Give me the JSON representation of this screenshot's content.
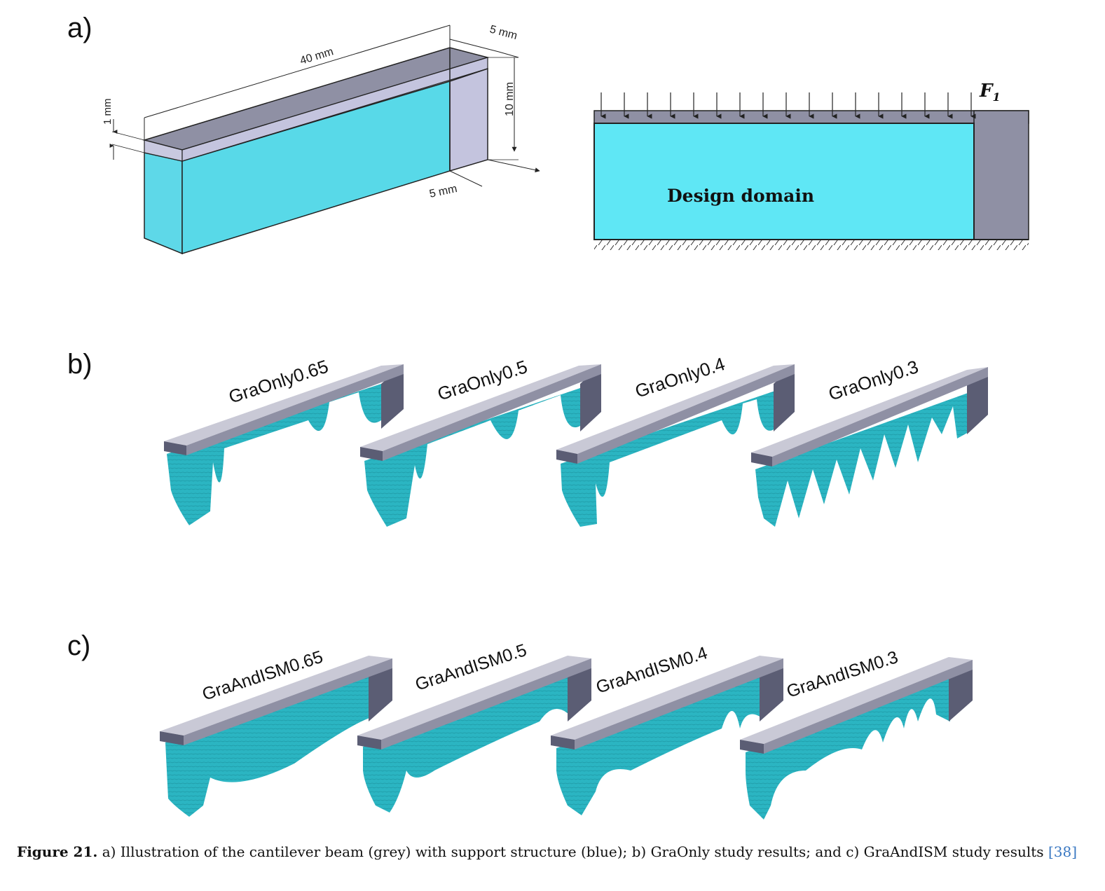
{
  "panels": {
    "a": {
      "label": "a)"
    },
    "b": {
      "label": "b)"
    },
    "c": {
      "label": "c)"
    }
  },
  "panel_a": {
    "dim_length": "40 mm",
    "dim_width_top": "5 mm",
    "dim_height": "10 mm",
    "dim_width_bottom": "5 mm",
    "dim_thickness": "1 mm",
    "force_label": "F",
    "force_subscript": "1",
    "domain_label": "Design domain"
  },
  "panel_b": {
    "labels": [
      "GraOnly0.65",
      "GraOnly0.5",
      "GraOnly0.4",
      "GraOnly0.3"
    ]
  },
  "panel_c": {
    "labels": [
      "GraAndISM0.65",
      "GraAndISM0.5",
      "GraAndISM0.4",
      "GraAndISM0.3"
    ]
  },
  "caption": {
    "figure": "Figure 21.",
    "text": " a) Illustration of the cantilever beam (grey) with support structure (blue); b) GraOnly study results; and c) GraAndISM study results ",
    "ref": "[38]"
  },
  "colors": {
    "support_blue": "#5ed8e8",
    "support_teal": "#2bb5c2",
    "beam_grey_top": "#c9c9d6",
    "beam_grey_side": "#5b5d74",
    "beam_grey_dark": "#8f90a4"
  }
}
